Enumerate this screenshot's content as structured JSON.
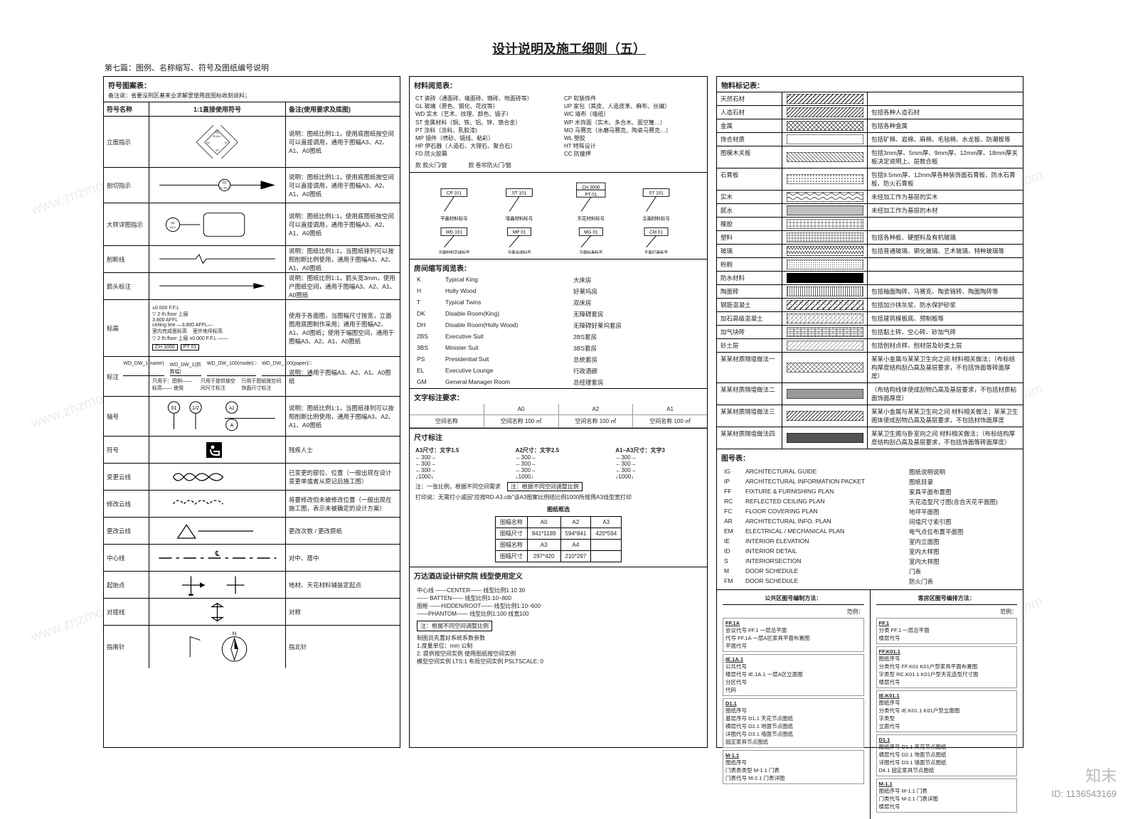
{
  "title": "设计说明及施工细则（五）",
  "subtitle": "第七篇：图例、名称缩写、符号及图纸编号说明",
  "watermark": "知末",
  "watermark_id": "ID: 1136543169",
  "panel1": {
    "heading": "符号图案表：",
    "note": "备注说：省要没刑区基来业求解里使用底图标收刻说料；",
    "th_name": "符号名称",
    "th_ratio": "1:1直接使用符号",
    "th_remark": "备注(使用要求及底图)",
    "rows": [
      {
        "name": "立面指示",
        "remark": "说明：图纸比例1:1，使用底图纸按空间可以直接调用，通用于图幅A3、A2、A1、A0图纸"
      },
      {
        "name": "剖切指示",
        "remark": "说明：图纸比例1:1，使用底图纸按空间可以直接调用，通用于图幅A3、A2、A1、A0图纸"
      },
      {
        "name": "大样详图指示",
        "remark": "说明：图纸比例1:1，使用底图纸按空间可以直接调用，通用于图幅A3、A2、A1、A0图纸"
      },
      {
        "name": "削断线",
        "remark": "说明：图纸比例1:1，当图纸排列可以按照削断比例使用，通用于图幅A3、A2、A1、A0图纸"
      },
      {
        "name": "箭头标注",
        "remark": "说明：图纸比例1:1，箭头宽3mm，使用户图纸空间，通用于图幅A3、A2、A1、A0图纸"
      },
      {
        "name": "标高",
        "remark": "使用于各面图，当图幅尺寸按宽，立面图用底图制作采用；通用于图幅A2、A1、A0图纸；使用于幅图空间，通用于图幅A3、A2、A1、A0图纸"
      },
      {
        "name": "标注",
        "remark": "说明：通用于图幅A3、A2、A1、A0图纸"
      },
      {
        "name": "轴号",
        "remark": "说明：图纸比例1:1，当图纸排列可以按照削断比例使用，通用于图幅A3、A2、A1、A0图纸"
      },
      {
        "name": "符号",
        "remark": "残疾人士"
      },
      {
        "name": "变更云线",
        "remark": "已变更的部位、位置（一般出现在设计变更单或者从原记后施工图）"
      },
      {
        "name": "修改云线",
        "remark": "将要修改但未被修改位置（一般出现在施工图，表示未被确定的设计方案）"
      },
      {
        "name": "更改云线",
        "remark": "更改次数 / 更改原纸"
      },
      {
        "name": "中心线",
        "remark": "对中、居中"
      },
      {
        "name": "起始点",
        "remark": "地材、天花材料铺装定起点"
      },
      {
        "name": "对接线",
        "remark": "对称"
      },
      {
        "name": "指南针",
        "remark": "指北针"
      }
    ],
    "annot": {
      "ffl": "±0.000 F.F.L",
      "floor2": "▽ 2 th.floor 上层",
      "elev": "3,800 AFFL",
      "ceil": "ceiling line —3,800 AFFL—",
      "inside": "室内完成面标高",
      "outside": "室外地坪标高",
      "floor2b": "▽ 2 th.floor 上层  ±0.000 F.F.L ——",
      "ch3000": "CH  3000",
      "pt01": "PT  01",
      "tag1": "WD_DW_1(name)",
      "tag2": "WD_DW_1(折算幅)",
      "tag3": "WD_DW_100(mode)□",
      "tag4": "WD_DW_100(paper)□",
      "n1": "只用于：图例—— 标高—— 使用",
      "n2": "只用于提供按空间尺寸标注",
      "n3": "只用于图纸按空间饰面尺寸标注",
      "ax": "01",
      "ax2": "A2",
      "aa": "A"
    }
  },
  "panel2": {
    "mat_heading": "材料阅览表：",
    "mat_lines_l": [
      "CT 瓷砖（通面砖、墙面砖、锦砖、地面砖等）",
      "GL 玻璃（原色、钢化、花纹等）",
      "WD 实木（艺术、纹理、颜色、镜子）",
      "ST 金属材料（铜、铁、铝、锌、铬合金）",
      "PT 涂料（涂料、乳胶漆)",
      "MP 镜件（喷砂、镜线、粘彩）",
      "HP 伊石器（人造石、大理石、聚合石）",
      "FD 防火胶幕"
    ],
    "mat_lines_r": [
      "CP 软装饰件",
      "UP 家包（其皮、人造皮革、麻布、丝编）",
      "WC 墙布（墙纸）",
      "WP 木饰面（实木、多合木、面空篾…）",
      "MO 马赛克（水磨马赛克、陶瓷马赛克…）",
      "WL 塑胶",
      "HT 特殊设计",
      "CC 防撞押"
    ],
    "door1": "款   款火门/窗",
    "door2": "款   卷帘防火门/窗",
    "diag_lbls": [
      "CP 101",
      "ST 101",
      "CH 3000 / PT 01",
      "ST 101"
    ],
    "diag_cap": [
      "平面材料标号",
      "墙面材料标号",
      "天花材料标号",
      "立面材料标号"
    ],
    "diag_lbls2": [
      "WD 101",
      "MP 01",
      "MG 01",
      "CM 01"
    ],
    "diag_cap2": [
      "平面材料完成标号",
      "平面合成标号",
      "平面标具标号",
      "平面灯具标号"
    ],
    "room_heading": "房间缩写阅览表：",
    "rooms": [
      {
        "k": "K",
        "e": "Typical King",
        "c": "大床房"
      },
      {
        "k": "H",
        "e": "Holly Wood",
        "c": "好莱坞房"
      },
      {
        "k": "T",
        "e": "Typical Twins",
        "c": "双床房"
      },
      {
        "k": "DK",
        "e": "Disable Room(King)",
        "c": "无障碍套房"
      },
      {
        "k": "DH",
        "e": "Disable Room(Holly Wood)",
        "c": "无障碍好莱坞套房"
      },
      {
        "k": "2BS",
        "e": "Executive Suit",
        "c": "2BS套房"
      },
      {
        "k": "3BS",
        "e": "Minister Suit",
        "c": "3BS套房"
      },
      {
        "k": "PS",
        "e": "Presidential Suit",
        "c": "总统套房"
      },
      {
        "k": "EL",
        "e": "Executive Lounge",
        "c": "行政酒廊"
      },
      {
        "k": "GM",
        "e": "General Manager Room",
        "c": "总经理套房"
      }
    ],
    "txt_heading": "文字标注要求：",
    "txt_cols": [
      "",
      "A0",
      "A2",
      "A1"
    ],
    "txt_row1": [
      "空间名称",
      "空间名称 100 ㎡",
      "空间名称 100 ㎡",
      "空间名称 100 ㎡"
    ],
    "dim_heading": "尺寸标注",
    "dim_cols": [
      {
        "t": "A3尺寸：文字1.5",
        "l": [
          "←300→",
          "←300→",
          "←300→",
          "↓1000↓"
        ]
      },
      {
        "t": "A2尺寸：文字2.5",
        "l": [
          "←300→",
          "←300→",
          "←300→",
          "↓1000↓"
        ]
      },
      {
        "t": "A1~A3尺寸：文字3",
        "l": [
          "←300→",
          "←300→",
          "←300→",
          "↓1000↓"
        ]
      }
    ],
    "dim_note": "注：一张比例，根据不同空间需求",
    "dim_note2": "注：根据不同空间调整比例",
    "print_note": "打印说：无需打小或因\"应按RD-A3.ctb\"该A3图案比例结比例1000所按用A3线型宽打印",
    "paper_heading": "图纸框选",
    "paper_rows": [
      [
        "图幅名称",
        "A0",
        "A2",
        "A3"
      ],
      [
        "图幅尺寸",
        "841*1189",
        "594*841",
        "420*594"
      ],
      [
        "图幅名称",
        "A3",
        "A4",
        ""
      ],
      [
        "图幅尺寸",
        "297*420",
        "210*297",
        ""
      ]
    ],
    "line_heading": "万达酒店设计研究院 线型使用定义",
    "line_lines": [
      "中心线 ——CENTER——  线型比例1:10  30",
      "—— BATTEN——  线型比例1:10~800",
      "图框 ——HIDDEN/ROOT——  线型比例1:10~600",
      "——PHANTOM——  线型比例1:100  线宽100"
    ],
    "line_note": "注：根据不同空间调整比例",
    "line_foot": [
      "制图员先置好系统系数参数",
      "1.度量单位：mm 公制",
      "2. 提供按空间实例 使用图纸按空间实例",
      "模型空间实例 LTS:1  布局空间实例 PSLTSCALE: 0"
    ]
  },
  "panel3": {
    "hatch_heading": "物料标记表：",
    "hatches": [
      {
        "n": "天然石材",
        "p": "h-diag1",
        "d": ""
      },
      {
        "n": "人造石材",
        "p": "h-diag2",
        "d": "包括各种人造石材"
      },
      {
        "n": "金属",
        "p": "h-cross",
        "d": "包括各种金属"
      },
      {
        "n": "饰合材质",
        "p": "h-blank",
        "d": "包括矿棉、岩棉、麻棉、毛毡棉、水龙板、防潮板等"
      },
      {
        "n": "图模木关板",
        "p": "h-hatch",
        "d": "包括3mm厚、5mm厚、9mm厚、12mm厚、18mm厚关板决定说明上、层数合板"
      },
      {
        "n": "石膏板",
        "p": "h-dots",
        "d": "包括9.5mm厚、12mm厚各种装饰面石膏板、防水石膏板、防火石膏板"
      },
      {
        "n": "实木",
        "p": "h-wood",
        "d": "未经加工作为基层的实木"
      },
      {
        "n": "腻水",
        "p": "h-line",
        "d": "未经加工作为基层的木材"
      },
      {
        "n": "橡胶",
        "p": "h-grid",
        "d": ""
      },
      {
        "n": "塑料",
        "p": "h-grid2",
        "d": "包括各种板、硬塑料及有机玻璃"
      },
      {
        "n": "玻璃",
        "p": "h-zigzag",
        "d": "包括普通玻璃、钢化玻璃、艺术玻璃、特种玻璃等"
      },
      {
        "n": "粉刷",
        "p": "h-dots2",
        "d": ""
      },
      {
        "n": "防水材料",
        "p": "h-solid",
        "d": ""
      },
      {
        "n": "陶面砖",
        "p": "h-vline",
        "d": "包括釉面陶砖、马赛克、陶瓷锦砖、陶面陶砖等"
      },
      {
        "n": "钢筋混凝土",
        "p": "h-conc",
        "d": "包括加沙挟灰浆、防水保护砂浆"
      },
      {
        "n": "加石高级混凝土",
        "p": "h-conc2",
        "d": "包括建筑模板底、预制板等"
      },
      {
        "n": "加气块砖",
        "p": "h-brick",
        "d": "包括黏土砖、空心砖、砂加气砖"
      },
      {
        "n": "砂土层",
        "p": "h-aac",
        "d": "包括刨材点样、刨材层及砂类土层"
      },
      {
        "n": "某某材质隔墙做法一",
        "p": "h-wall1",
        "d": "某某小金属与某某卫生向之间  材料相关做法；（布标结构厚度结构刮凸高及基层要求，不包括饰面等砖面厚度）"
      },
      {
        "n": "某某材质隔墙做法二",
        "p": "h-wall2",
        "d": "（布结构线体使成刮物凸高及基层要求，不包括材质粘面饰面厚度）"
      },
      {
        "n": "某某材质隔墙做法三",
        "p": "h-wall3",
        "d": "某某小金属与某某卫生向之间  材料相关做法；某某卫生阁体使成刮物凸高及基层要求，不包括材饰面厚度"
      },
      {
        "n": "某某材质隔墙做法四",
        "p": "h-wall4",
        "d": "某某卫生阁与卧室向之间  材料相关做法；（布标结构厚度结构刮凸高及基层要求，不包括饰面等砖面厚度）"
      }
    ],
    "drw_heading": "图号表：",
    "drws": [
      {
        "k": "IG",
        "e": "ARCHITECTURAL GUIDE",
        "c": "图纸说明说明"
      },
      {
        "k": "IP",
        "e": "ARCHITECTURAL INFORMATION PACKET",
        "c": "图纸目录"
      },
      {
        "k": "FF",
        "e": "FIXTURE & FURNISHING PLAN",
        "c": "家具平面布置图"
      },
      {
        "k": "RC",
        "e": "REFLECTED CEILING PLAN",
        "c": "天花造型尺寸图(含合天花平面图)"
      },
      {
        "k": "FC",
        "e": "FLOOR COVERING PLAN",
        "c": "地坪平面图"
      },
      {
        "k": "AR",
        "e": "ARCHITECTURAL INFO. PLAN",
        "c": "间墙尺寸索引图"
      },
      {
        "k": "EM",
        "e": "ELECTRICAL / MECHANICAL PLAN",
        "c": "电气点位布置平面图"
      },
      {
        "k": "IE",
        "e": "INTERIOR ELEVATION",
        "c": "室内立面图"
      },
      {
        "k": "ID",
        "e": "INTERIOR DETAIL",
        "c": "室内大样图"
      },
      {
        "k": "S",
        "e": "INTERIORSECTION",
        "c": "室内大样图"
      },
      {
        "k": "M",
        "e": "DOOR SCHEDULE",
        "c": "门表"
      },
      {
        "k": "FM",
        "e": "DOOR SCHEDULE",
        "c": "防火门表"
      }
    ],
    "num_title_l": "公共区图号编制方法：",
    "num_title_r": "客房区图号编排方法：",
    "num_ex": "范例：",
    "num_l": [
      {
        "t": "FF.1A",
        "d": "会议代号 FF.1  一层总平面\n代号  FF.1A  一层A区家具平面布置图\n平面代号"
      },
      {
        "t": "IE.1A.1",
        "d": "公共代号\n楼层代号  IE.1A.1  一层A区立面图\n分区代号\n代码"
      },
      {
        "t": "D1.1",
        "d": "图纸序号\n基层序号  D1.1  天花节点图纸\n横层代号  D2.1  地面节点图纸\n详图代号  D3.1  墙面节点图纸\n  固定家具节点图纸"
      },
      {
        "t": "M-1.1",
        "d": "图纸序号\n门表表类型  M-1.1  门表\n门表代号  M-2.1  门表详图"
      }
    ],
    "num_r": [
      {
        "t": "FF.1",
        "d": "分类  FF.1  一层总平面\n楼层代号"
      },
      {
        "t": "FF.K01.1",
        "d": "图纸序号\n分类代号  FF.K01 K01户型家具平面布置图\n字类型  RC.K01.1 K01户型天花造型尺寸图\n楼层代号"
      },
      {
        "t": "IE.K01.1",
        "d": "图纸序号\n分类代号  IE.K01.1 K01户型立面图\n字类型\n立面代号"
      },
      {
        "t": "D1.1",
        "d": "图纸序号  D1.1  天花节点图纸\n横层代号  D2.1  地面节点图纸\n详图代号  D3.1  墙面节点图纸\n  D4.1  固定家具节点图纸"
      },
      {
        "t": "M-1.1",
        "d": "图纸序号  M-1.1  门表\n门类代号  M-2.1  门表详图\n楼层代号"
      }
    ]
  }
}
